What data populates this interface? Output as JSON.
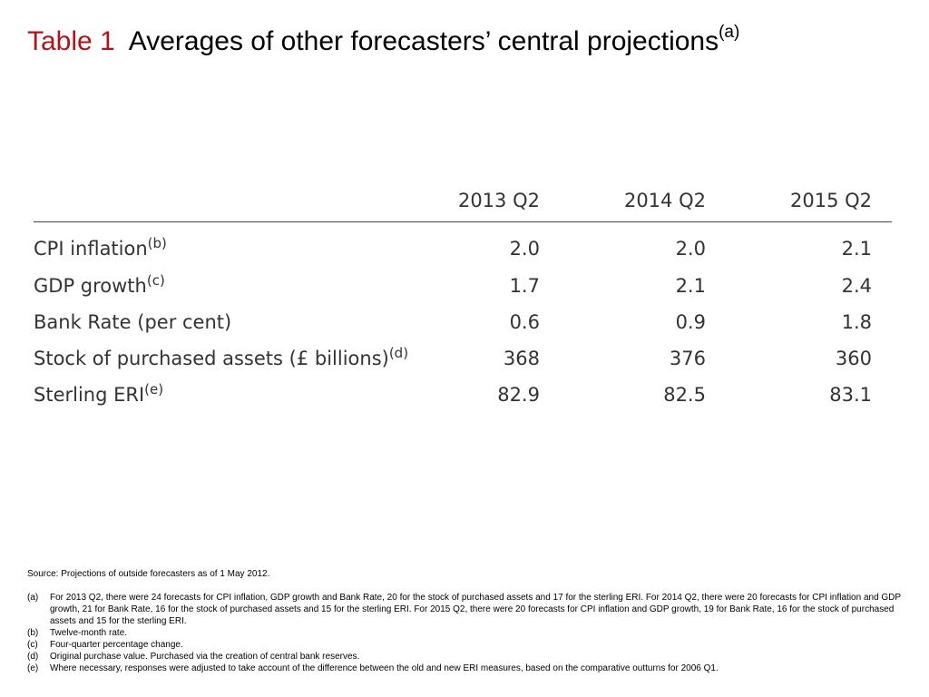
{
  "title": {
    "label": "Table 1",
    "text": "Averages of other forecasters’ central projections",
    "note": "(a)"
  },
  "table": {
    "columns": [
      "2013 Q2",
      "2014 Q2",
      "2015 Q2"
    ],
    "rows": [
      {
        "label": "CPI inflation",
        "note": "(b)",
        "values": [
          "2.0",
          "2.0",
          "2.1"
        ]
      },
      {
        "label": "GDP growth",
        "note": "(c)",
        "values": [
          "1.7",
          "2.1",
          "2.4"
        ]
      },
      {
        "label": "Bank Rate (per cent)",
        "note": "",
        "values": [
          "0.6",
          "0.9",
          "1.8"
        ]
      },
      {
        "label": "Stock of purchased assets (£ billions)",
        "note": "(d)",
        "values": [
          "368",
          "376",
          "360"
        ]
      },
      {
        "label": "Sterling ERI",
        "note": "(e)",
        "values": [
          "82.9",
          "82.5",
          "83.1"
        ]
      }
    ]
  },
  "footnotes": {
    "source": "Source:  Projections of outside forecasters as of 1 May 2012.",
    "notes": [
      {
        "marker": "(a)",
        "text": "For 2013 Q2, there were 24 forecasts for CPI inflation, GDP growth and Bank Rate, 20 for the stock of purchased assets and 17 for the sterling ERI.  For 2014 Q2, there were 20 forecasts for CPI inflation and GDP growth, 21 for Bank Rate, 16 for the stock of purchased assets and 15 for the sterling ERI.  For 2015 Q2, there were 20 forecasts for CPI inflation and GDP growth, 19 for Bank Rate, 16 for the stock of purchased assets and 15 for the sterling ERI."
      },
      {
        "marker": "(b)",
        "text": "Twelve-month rate."
      },
      {
        "marker": "(c)",
        "text": "Four-quarter percentage change."
      },
      {
        "marker": "(d)",
        "text": "Original purchase value.  Purchased via the creation of central bank reserves."
      },
      {
        "marker": "(e)",
        "text": "Where necessary, responses were adjusted to take account of the difference between the old and new ERI measures, based on the comparative outturns for 2006 Q1."
      }
    ]
  }
}
